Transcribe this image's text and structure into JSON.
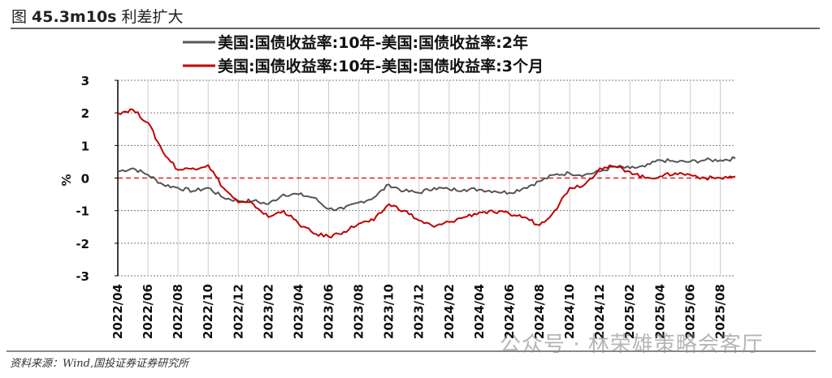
{
  "header": {
    "title_prefix": "图 ",
    "title_bold": "45.3m10s",
    "title_suffix": " 利差扩大"
  },
  "footer": {
    "source": "资料来源：Wind,国投证券证券研究所",
    "watermark": "公众号 · 林荣雄策略会客厅"
  },
  "chart_data": {
    "type": "line",
    "title": "",
    "xlabel": "",
    "ylabel": "%",
    "ylim": [
      -3,
      3
    ],
    "yticks": [
      "3",
      "2",
      "1",
      "0",
      "-1",
      "-2",
      "-3"
    ],
    "xticks": [
      "2022/04",
      "2022/06",
      "2022/08",
      "2022/10",
      "2022/12",
      "2023/02",
      "2023/04",
      "2023/06",
      "2023/08",
      "2023/10",
      "2023/12",
      "2024/02",
      "2024/04",
      "2024/06",
      "2024/08",
      "2024/10",
      "2024/12",
      "2025/02",
      "2025/04",
      "2025/06",
      "2025/08"
    ],
    "grid": true,
    "legend_position": "top-center",
    "reference_line": {
      "y": 0,
      "color": "#e02020",
      "style": "dashed"
    },
    "x": [
      "2022/04",
      "2022/05",
      "2022/06",
      "2022/07",
      "2022/08",
      "2022/09",
      "2022/10",
      "2022/11",
      "2022/12",
      "2023/01",
      "2023/02",
      "2023/03",
      "2023/04",
      "2023/05",
      "2023/06",
      "2023/07",
      "2023/08",
      "2023/09",
      "2023/10",
      "2023/11",
      "2023/12",
      "2024/01",
      "2024/02",
      "2024/03",
      "2024/04",
      "2024/05",
      "2024/06",
      "2024/07",
      "2024/08",
      "2024/09",
      "2024/10",
      "2024/11",
      "2024/12",
      "2025/01",
      "2025/02",
      "2025/03",
      "2025/04",
      "2025/05",
      "2025/06",
      "2025/07",
      "2025/08",
      "2025/09"
    ],
    "series": [
      {
        "name": "美国:国债收益率:10年-美国:国债收益率:2年",
        "color": "#555555",
        "values": [
          0.2,
          0.3,
          0.1,
          -0.2,
          -0.3,
          -0.4,
          -0.3,
          -0.6,
          -0.7,
          -0.7,
          -0.8,
          -0.5,
          -0.5,
          -0.6,
          -0.95,
          -0.95,
          -0.75,
          -0.6,
          -0.2,
          -0.4,
          -0.45,
          -0.3,
          -0.35,
          -0.35,
          -0.35,
          -0.4,
          -0.45,
          -0.3,
          -0.1,
          0.1,
          0.15,
          0.1,
          0.2,
          0.35,
          0.3,
          0.35,
          0.55,
          0.5,
          0.5,
          0.55,
          0.55,
          0.6
        ]
      },
      {
        "name": "美国:国债收益率:10年-美国:国债收益率:3个月",
        "color": "#c00000",
        "values": [
          2.0,
          2.1,
          1.7,
          0.8,
          0.25,
          0.3,
          0.4,
          -0.3,
          -0.75,
          -0.8,
          -1.2,
          -1.0,
          -1.4,
          -1.7,
          -1.8,
          -1.65,
          -1.4,
          -1.3,
          -0.8,
          -1.0,
          -1.3,
          -1.5,
          -1.35,
          -1.2,
          -1.05,
          -1.05,
          -1.1,
          -1.2,
          -1.45,
          -1.0,
          -0.3,
          -0.2,
          0.3,
          0.35,
          0.2,
          0.0,
          0.05,
          0.15,
          0.1,
          0.0,
          0.0,
          0.05
        ]
      }
    ]
  }
}
